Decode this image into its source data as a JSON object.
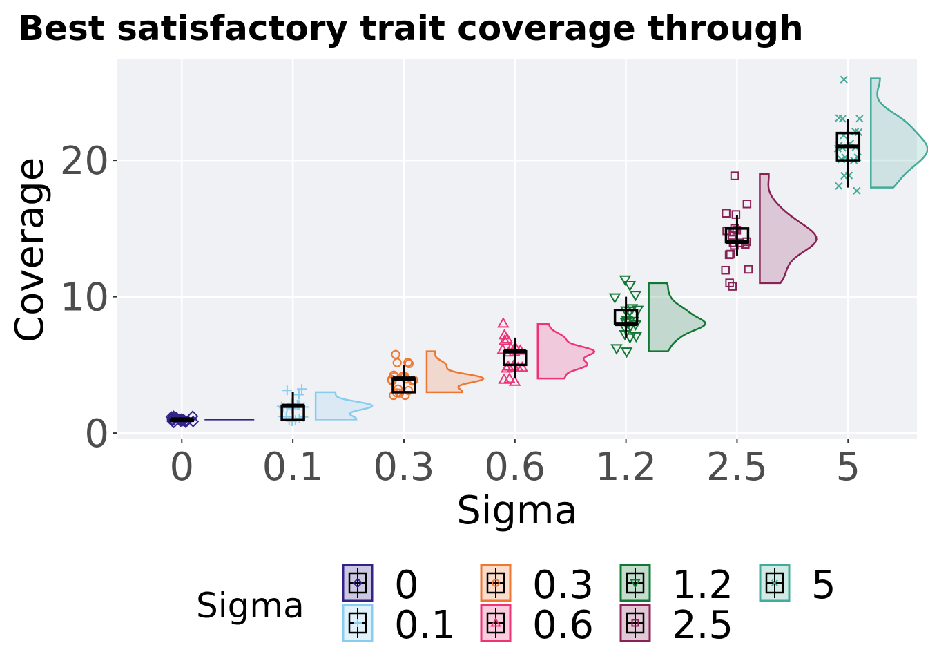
{
  "chart_data": {
    "type": "raincloud",
    "title": "Best satisfactory trait coverage through",
    "xlabel": "Sigma",
    "ylabel": "Coverage",
    "ylim": [
      -0.4,
      27.4
    ],
    "yticks": [
      0,
      10,
      20
    ],
    "ytick_labels": [
      "0",
      "10",
      "20"
    ],
    "grid": true,
    "legend": {
      "title": "Sigma",
      "placement": "bottom"
    },
    "categories": [
      "0",
      "0.1",
      "0.3",
      "0.6",
      "1.2",
      "2.5",
      "5"
    ],
    "series": [
      {
        "name": "0",
        "color": "#332288",
        "shape": "diamond",
        "box": {
          "min": 1,
          "q1": 1,
          "median": 1,
          "q3": 1,
          "max": 1
        },
        "points": [
          1,
          1,
          1,
          1,
          1,
          1,
          1,
          1,
          1,
          1,
          1,
          1,
          1,
          1,
          1,
          1,
          1,
          1,
          1,
          1
        ],
        "density_range": [
          1,
          1
        ]
      },
      {
        "name": "0.1",
        "color": "#88CCEE",
        "shape": "plus",
        "box": {
          "min": 1,
          "q1": 1,
          "median": 2,
          "q3": 2,
          "max": 3
        },
        "points": [
          1,
          1,
          1,
          1,
          1,
          1,
          2,
          2,
          2,
          2,
          2,
          2,
          2,
          2,
          2,
          3,
          3,
          3,
          1,
          2
        ],
        "density_range": [
          1,
          3
        ]
      },
      {
        "name": "0.3",
        "color": "#EE7733",
        "shape": "circle",
        "box": {
          "min": 3,
          "q1": 3,
          "median": 4,
          "q3": 4,
          "max": 5
        },
        "points": [
          3,
          3,
          3,
          3,
          3,
          4,
          4,
          4,
          4,
          4,
          4,
          4,
          4,
          5,
          5,
          5,
          6,
          3,
          4,
          4
        ],
        "density_range": [
          3,
          6
        ]
      },
      {
        "name": "0.6",
        "color": "#EE3377",
        "shape": "triangle-up",
        "box": {
          "min": 4,
          "q1": 5,
          "median": 6,
          "q3": 6,
          "max": 7
        },
        "points": [
          4,
          4,
          4,
          5,
          5,
          5,
          5,
          5,
          6,
          6,
          6,
          6,
          6,
          6,
          7,
          7,
          7,
          8,
          5,
          6
        ],
        "density_range": [
          4,
          8
        ]
      },
      {
        "name": "1.2",
        "color": "#117733",
        "shape": "triangle-down",
        "box": {
          "min": 7,
          "q1": 8,
          "median": 8,
          "q3": 9,
          "max": 10
        },
        "points": [
          6,
          6,
          7,
          7,
          7,
          8,
          8,
          8,
          8,
          8,
          8,
          9,
          9,
          9,
          9,
          10,
          10,
          11,
          11,
          8
        ],
        "density_range": [
          6,
          11
        ]
      },
      {
        "name": "2.5",
        "color": "#882255",
        "shape": "square",
        "box": {
          "min": 13,
          "q1": 14,
          "median": 14,
          "q3": 15,
          "max": 16
        },
        "points": [
          11,
          11,
          12,
          12,
          13,
          13,
          14,
          14,
          14,
          14,
          14,
          15,
          15,
          15,
          15,
          16,
          16,
          17,
          19,
          14
        ],
        "density_range": [
          11,
          19
        ]
      },
      {
        "name": "5",
        "color": "#44AA99",
        "shape": "x",
        "box": {
          "min": 18,
          "q1": 20,
          "median": 21,
          "q3": 22,
          "max": 23
        },
        "points": [
          18,
          18,
          19,
          19,
          20,
          20,
          20,
          20,
          21,
          21,
          21,
          21,
          21,
          22,
          22,
          22,
          23,
          23,
          23,
          26
        ],
        "density_range": [
          18,
          26
        ]
      }
    ]
  }
}
